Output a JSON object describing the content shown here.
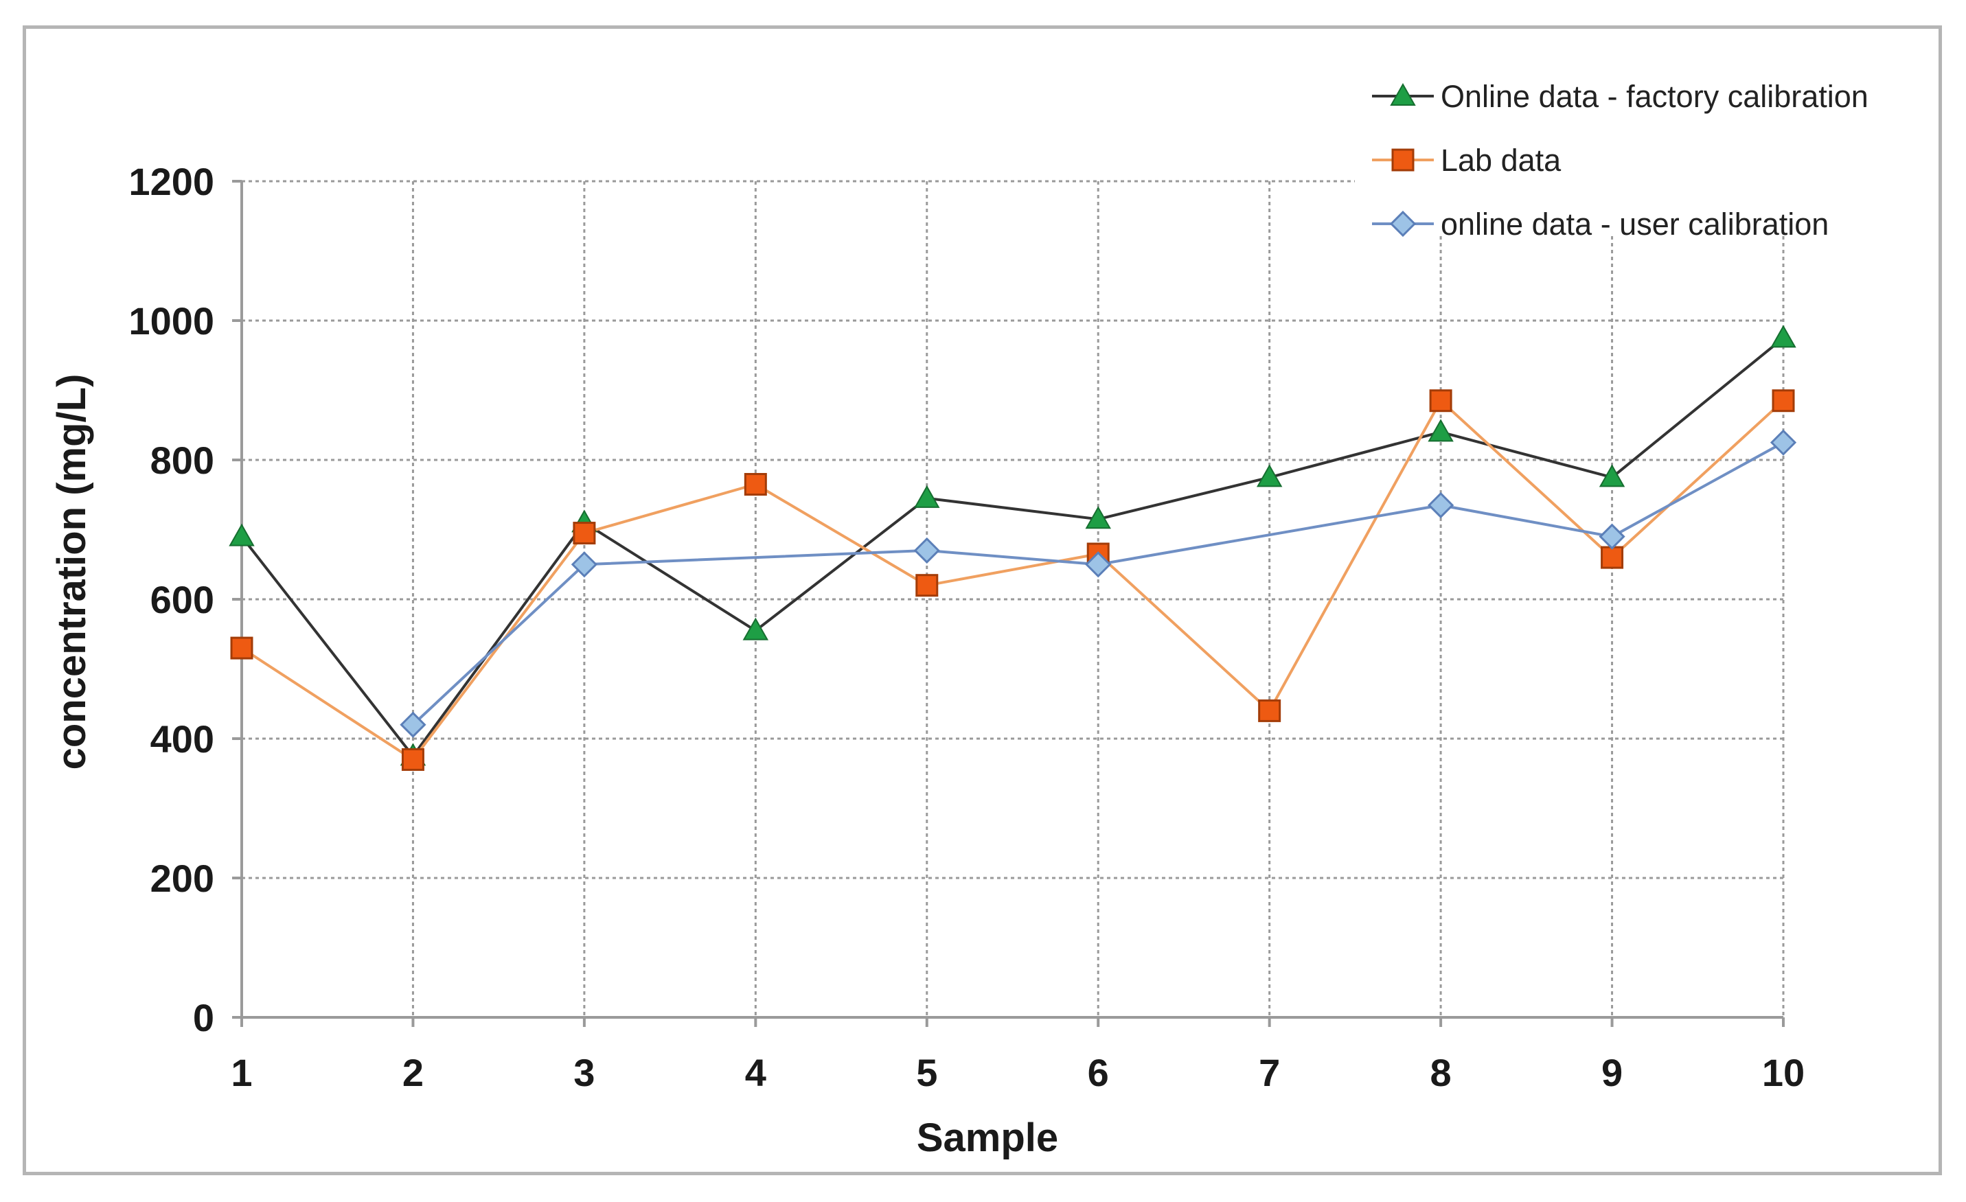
{
  "chart_data": {
    "type": "line",
    "title": "",
    "xlabel": "Sample",
    "ylabel": "concentration (mg/L)",
    "categories": [
      "1",
      "2",
      "3",
      "4",
      "5",
      "6",
      "7",
      "8",
      "9",
      "10"
    ],
    "x": [
      1,
      2,
      3,
      4,
      5,
      6,
      7,
      8,
      9,
      10
    ],
    "ylim": [
      0,
      1200
    ],
    "yticks": [
      0,
      200,
      400,
      600,
      800,
      1000,
      1200
    ],
    "grid": true,
    "legend_position": "top-right",
    "series": [
      {
        "name": "Online data - factory calibration",
        "marker": "triangle",
        "line_color": "#333333",
        "marker_color": "#1e9e45",
        "values": [
          690,
          375,
          710,
          555,
          745,
          715,
          775,
          840,
          775,
          975
        ]
      },
      {
        "name": "Lab data",
        "marker": "square",
        "line_color": "#f0a060",
        "marker_color": "#ee5a12",
        "values": [
          530,
          370,
          695,
          765,
          620,
          665,
          440,
          885,
          660,
          885
        ]
      },
      {
        "name": "online data - user calibration",
        "marker": "diamond",
        "line_color": "#6f8fc4",
        "marker_color": "#9dc3e6",
        "values": [
          null,
          420,
          650,
          null,
          670,
          650,
          null,
          735,
          690,
          825
        ]
      }
    ]
  }
}
